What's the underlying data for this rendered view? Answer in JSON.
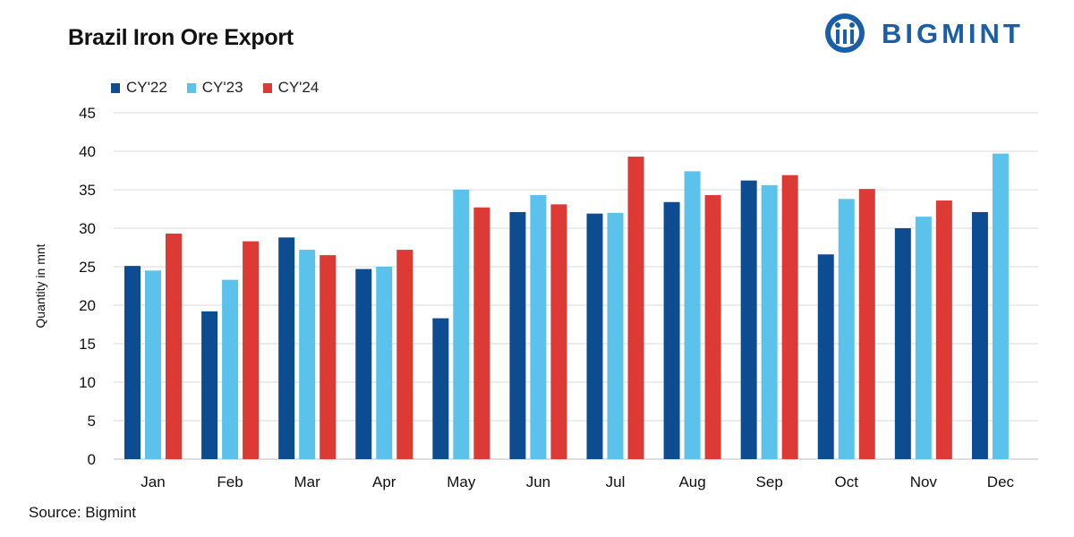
{
  "header": {
    "title": "Brazil Iron Ore Export",
    "brand": "BIGMINT"
  },
  "footer": {
    "source": "Source:  Bigmint"
  },
  "colors": {
    "CY'22": "#0e4c92",
    "CY'23": "#5bc2ec",
    "CY'24": "#de3a35",
    "grid": "#d9d9d9",
    "brand": "#1b5ea8"
  },
  "chart_data": {
    "type": "bar",
    "title": "Brazil Iron Ore Export",
    "xlabel": "",
    "ylabel": "Quantity in mnt",
    "ylim": [
      0,
      45
    ],
    "yticks": [
      0,
      5,
      10,
      15,
      20,
      25,
      30,
      35,
      40,
      45
    ],
    "grid": true,
    "legend_position": "top-left",
    "categories": [
      "Jan",
      "Feb",
      "Mar",
      "Apr",
      "May",
      "Jun",
      "Jul",
      "Aug",
      "Sep",
      "Oct",
      "Nov",
      "Dec"
    ],
    "series": [
      {
        "name": "CY'22",
        "values": [
          25.1,
          19.2,
          28.8,
          24.7,
          18.3,
          32.1,
          31.9,
          33.4,
          36.2,
          26.6,
          30.0,
          32.1
        ]
      },
      {
        "name": "CY'23",
        "values": [
          24.5,
          23.3,
          27.2,
          25.0,
          35.0,
          34.3,
          32.0,
          37.4,
          35.6,
          33.8,
          31.5,
          39.7
        ]
      },
      {
        "name": "CY'24",
        "values": [
          29.3,
          28.3,
          26.5,
          27.2,
          32.7,
          33.1,
          39.3,
          34.3,
          36.9,
          35.1,
          33.6,
          null
        ]
      }
    ]
  }
}
